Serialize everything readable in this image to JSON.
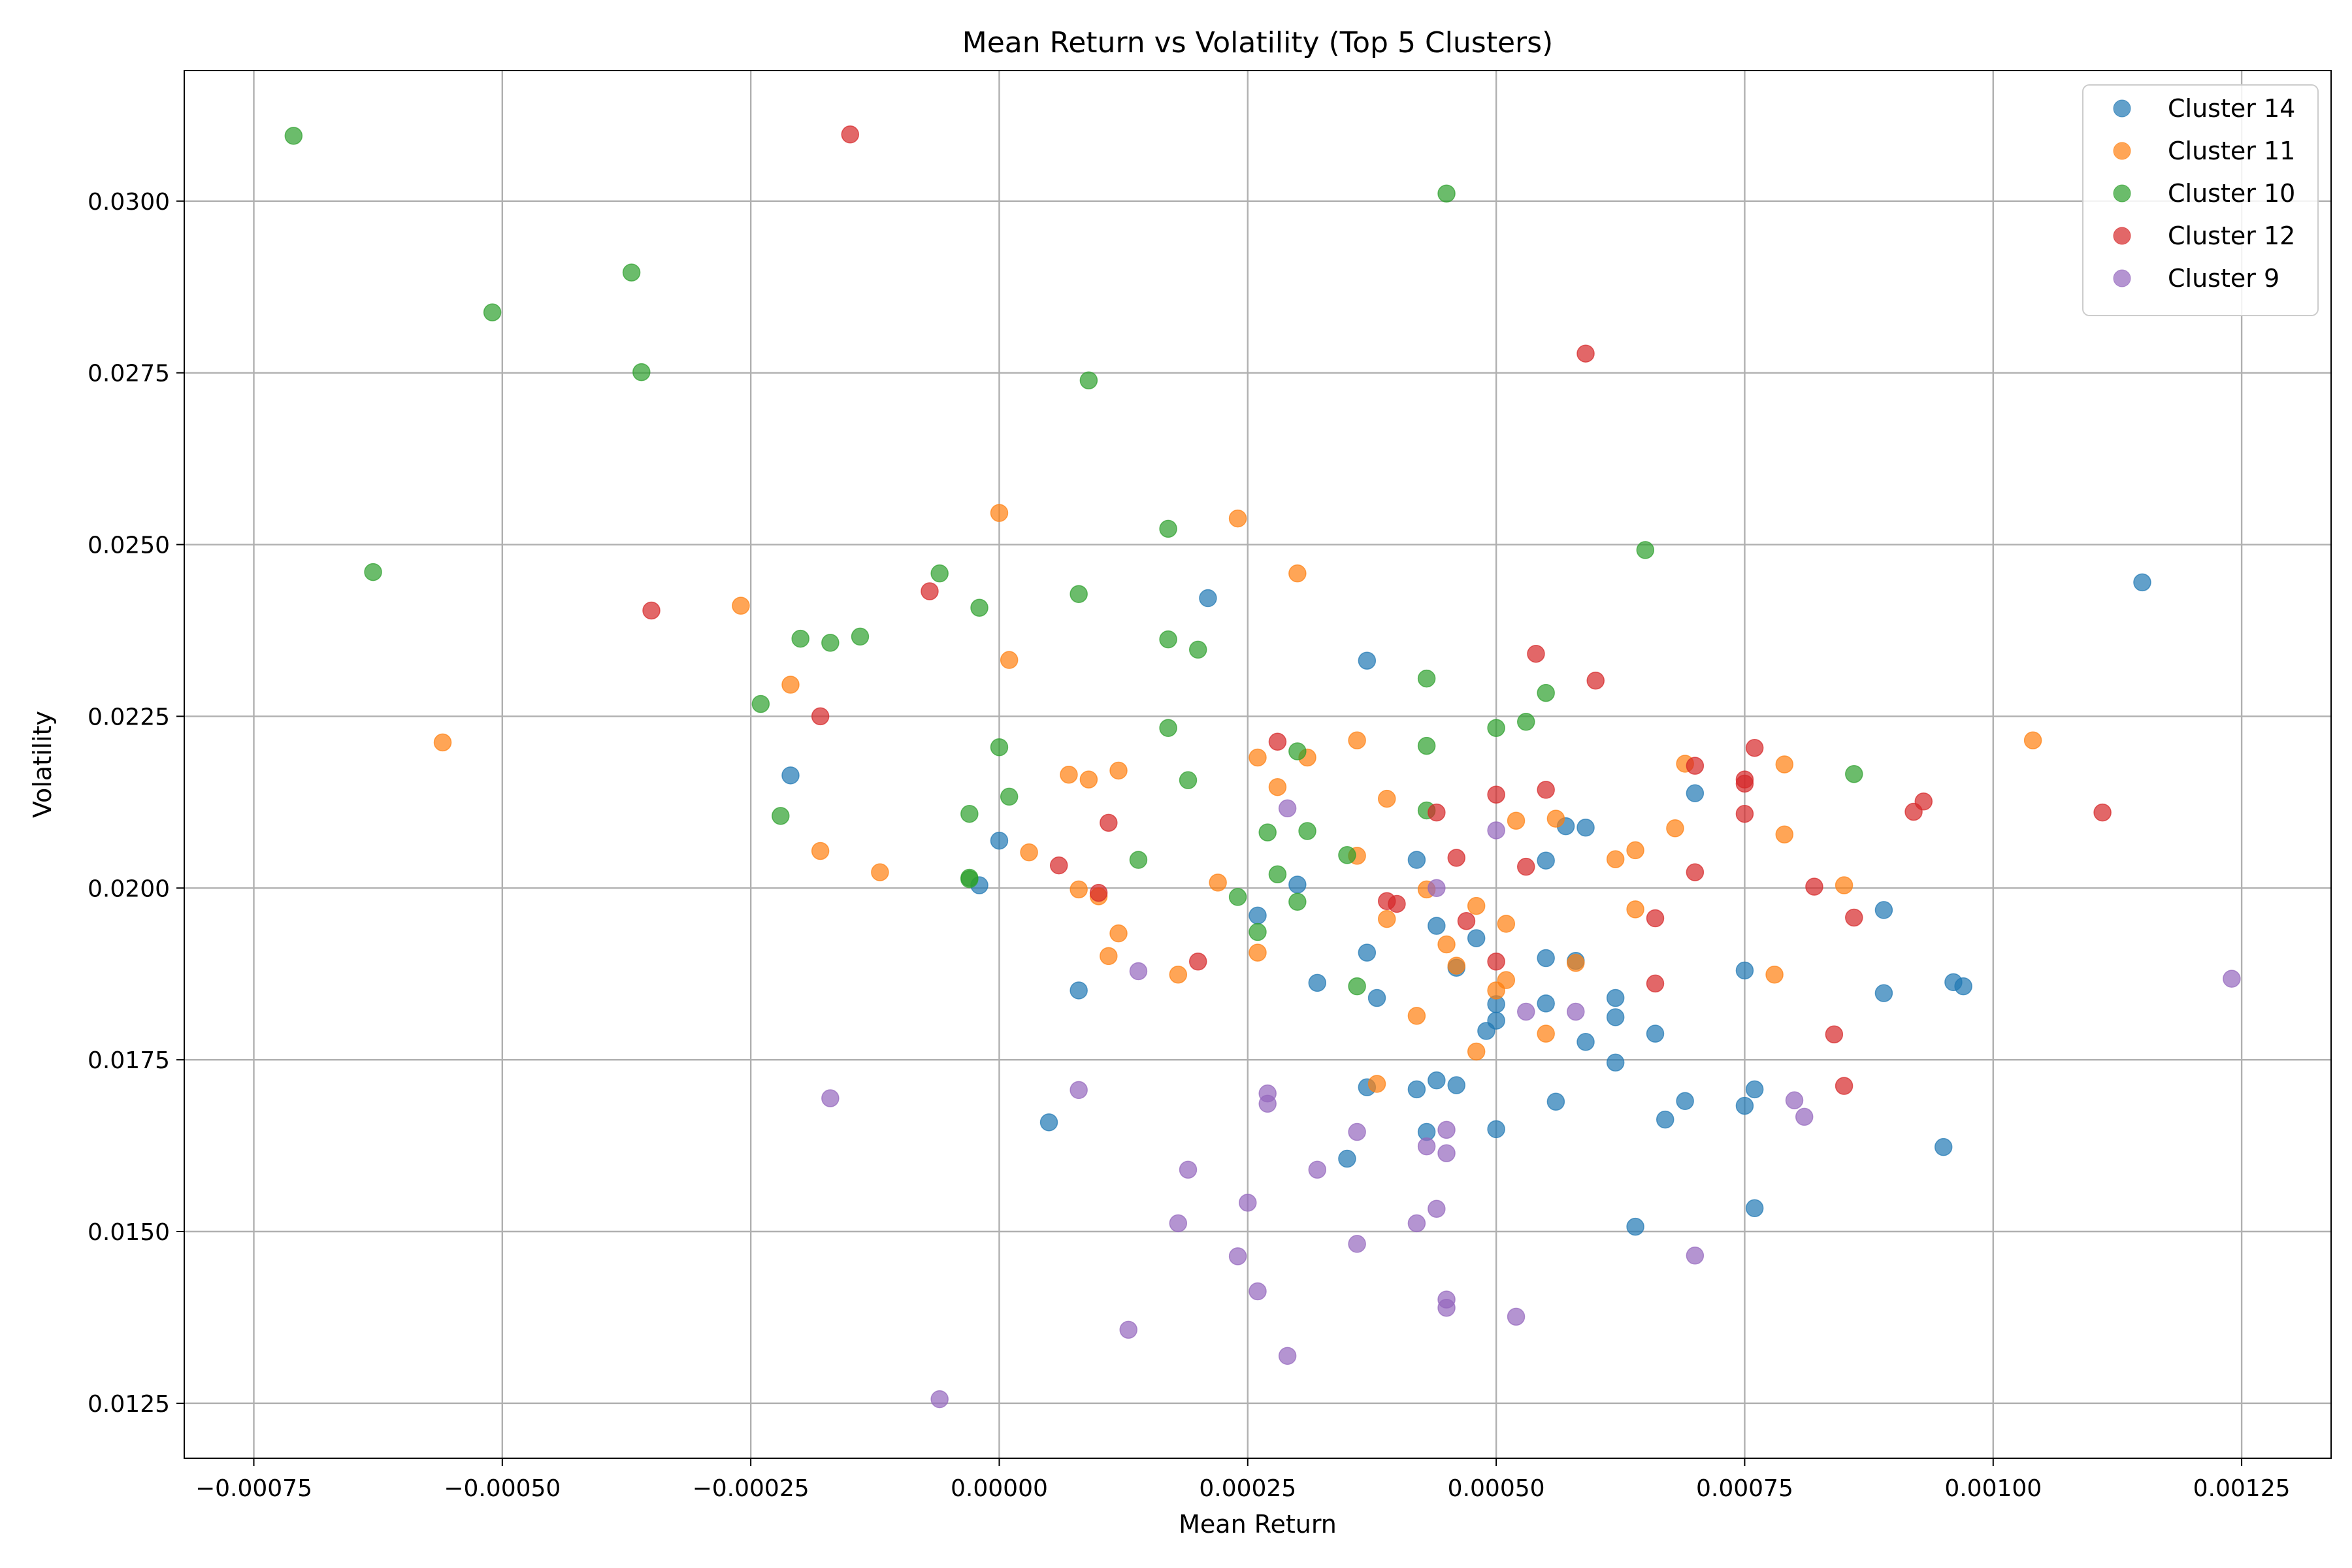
{
  "chart_data": {
    "type": "scatter",
    "title": "Mean Return vs Volatility (Top 5 Clusters)",
    "xlabel": "Mean Return",
    "ylabel": "Volatility",
    "xlim": [
      -0.00082,
      0.00134
    ],
    "ylim": [
      0.0117,
      0.0319
    ],
    "grid": true,
    "legend_position": "top-right",
    "x_ticks": [
      {
        "value": -0.00075,
        "label": "−0.00075"
      },
      {
        "value": -0.0005,
        "label": "−0.00050"
      },
      {
        "value": -0.00025,
        "label": "−0.00025"
      },
      {
        "value": 0.0,
        "label": "0.00000"
      },
      {
        "value": 0.00025,
        "label": "0.00025"
      },
      {
        "value": 0.0005,
        "label": "0.00050"
      },
      {
        "value": 0.00075,
        "label": "0.00075"
      },
      {
        "value": 0.001,
        "label": "0.00100"
      },
      {
        "value": 0.00125,
        "label": "0.00125"
      }
    ],
    "y_ticks": [
      {
        "value": 0.0125,
        "label": "0.0125"
      },
      {
        "value": 0.015,
        "label": "0.0150"
      },
      {
        "value": 0.0175,
        "label": "0.0175"
      },
      {
        "value": 0.02,
        "label": "0.0200"
      },
      {
        "value": 0.0225,
        "label": "0.0225"
      },
      {
        "value": 0.025,
        "label": "0.0250"
      },
      {
        "value": 0.0275,
        "label": "0.0275"
      },
      {
        "value": 0.03,
        "label": "0.0300"
      }
    ],
    "series": [
      {
        "name": "Cluster 14",
        "color": "#1f77b4",
        "points": [
          [
            0.00115,
            0.02445
          ],
          [
            0.00021,
            0.02422
          ],
          [
            0.00037,
            0.02331
          ],
          [
            -0.00021,
            0.02164
          ],
          [
            0.0007,
            0.02138
          ],
          [
            0.00057,
            0.0209
          ],
          [
            0.00059,
            0.02088
          ],
          [
            0.0,
            0.02069
          ],
          [
            0.00042,
            0.02041
          ],
          [
            0.00055,
            0.0204
          ],
          [
            0.0003,
            0.02005
          ],
          [
            -2e-05,
            0.02004
          ],
          [
            0.00089,
            0.01968
          ],
          [
            0.00026,
            0.0196
          ],
          [
            0.00044,
            0.01945
          ],
          [
            0.00048,
            0.01927
          ],
          [
            0.00037,
            0.01906
          ],
          [
            0.00055,
            0.01898
          ],
          [
            0.00058,
            0.01894
          ],
          [
            0.00046,
            0.01884
          ],
          [
            0.00075,
            0.0188
          ],
          [
            0.00032,
            0.01862
          ],
          [
            0.00096,
            0.01863
          ],
          [
            0.00097,
            0.01857
          ],
          [
            8e-05,
            0.01851
          ],
          [
            0.00089,
            0.01847
          ],
          [
            0.00038,
            0.0184
          ],
          [
            0.00062,
            0.0184
          ],
          [
            0.00055,
            0.01832
          ],
          [
            0.0005,
            0.01831
          ],
          [
            0.00062,
            0.01812
          ],
          [
            0.0005,
            0.01807
          ],
          [
            0.00049,
            0.01792
          ],
          [
            0.00066,
            0.01788
          ],
          [
            0.00059,
            0.01776
          ],
          [
            0.00062,
            0.01746
          ],
          [
            0.00044,
            0.0172
          ],
          [
            0.00046,
            0.01713
          ],
          [
            0.00037,
            0.0171
          ],
          [
            0.00042,
            0.01707
          ],
          [
            0.00076,
            0.01707
          ],
          [
            0.00069,
            0.0169
          ],
          [
            0.00056,
            0.01689
          ],
          [
            0.00075,
            0.01683
          ],
          [
            0.00067,
            0.01663
          ],
          [
            5e-05,
            0.01659
          ],
          [
            0.0005,
            0.01649
          ],
          [
            0.00043,
            0.01645
          ],
          [
            0.00095,
            0.01623
          ],
          [
            0.00035,
            0.01606
          ],
          [
            0.00076,
            0.01534
          ],
          [
            0.00064,
            0.01507
          ]
        ]
      },
      {
        "name": "Cluster 11",
        "color": "#ff7f0e",
        "points": [
          [
            0.0,
            0.02546
          ],
          [
            0.00024,
            0.02538
          ],
          [
            0.0003,
            0.02458
          ],
          [
            -0.00026,
            0.02411
          ],
          [
            1e-05,
            0.02332
          ],
          [
            -0.00021,
            0.02296
          ],
          [
            -0.00056,
            0.02212
          ],
          [
            0.00104,
            0.02215
          ],
          [
            0.00036,
            0.02215
          ],
          [
            0.00026,
            0.0219
          ],
          [
            0.00031,
            0.0219
          ],
          [
            0.00069,
            0.02181
          ],
          [
            0.00079,
            0.0218
          ],
          [
            0.00012,
            0.02171
          ],
          [
            7e-05,
            0.02165
          ],
          [
            9e-05,
            0.02158
          ],
          [
            0.00028,
            0.02147
          ],
          [
            0.00039,
            0.0213
          ],
          [
            0.00056,
            0.02101
          ],
          [
            0.00052,
            0.02098
          ],
          [
            0.00068,
            0.02087
          ],
          [
            0.00079,
            0.02078
          ],
          [
            0.00064,
            0.02055
          ],
          [
            -0.00018,
            0.02054
          ],
          [
            3e-05,
            0.02052
          ],
          [
            0.00036,
            0.02047
          ],
          [
            0.00062,
            0.02042
          ],
          [
            -0.00012,
            0.02023
          ],
          [
            0.00022,
            0.02008
          ],
          [
            0.00085,
            0.02004
          ],
          [
            0.00043,
            0.01998
          ],
          [
            8e-05,
            0.01998
          ],
          [
            0.0001,
            0.01988
          ],
          [
            0.00048,
            0.01974
          ],
          [
            0.00064,
            0.01969
          ],
          [
            0.00039,
            0.01955
          ],
          [
            0.00051,
            0.01948
          ],
          [
            0.00012,
            0.01934
          ],
          [
            0.00045,
            0.01918
          ],
          [
            0.00026,
            0.01906
          ],
          [
            0.00011,
            0.01901
          ],
          [
            0.00058,
            0.01891
          ],
          [
            0.00046,
            0.01887
          ],
          [
            0.00018,
            0.01874
          ],
          [
            0.00078,
            0.01874
          ],
          [
            0.00051,
            0.01866
          ],
          [
            0.0005,
            0.01851
          ],
          [
            0.00042,
            0.01814
          ],
          [
            0.00055,
            0.01788
          ],
          [
            0.00048,
            0.01762
          ],
          [
            0.00038,
            0.01715
          ]
        ]
      },
      {
        "name": "Cluster 10",
        "color": "#2ca02c",
        "points": [
          [
            -0.00071,
            0.03095
          ],
          [
            0.00045,
            0.03011
          ],
          [
            -0.00037,
            0.02896
          ],
          [
            -0.00051,
            0.02838
          ],
          [
            -0.00036,
            0.02751
          ],
          [
            9e-05,
            0.02739
          ],
          [
            0.00017,
            0.02523
          ],
          [
            0.00065,
            0.02492
          ],
          [
            -0.00063,
            0.0246
          ],
          [
            -6e-05,
            0.02458
          ],
          [
            8e-05,
            0.02428
          ],
          [
            -2e-05,
            0.02408
          ],
          [
            -0.0002,
            0.02363
          ],
          [
            -0.00014,
            0.02366
          ],
          [
            -0.00017,
            0.02357
          ],
          [
            0.00017,
            0.02362
          ],
          [
            0.0002,
            0.02347
          ],
          [
            0.00043,
            0.02305
          ],
          [
            0.00055,
            0.02284
          ],
          [
            -0.00024,
            0.02268
          ],
          [
            0.00053,
            0.02242
          ],
          [
            0.0005,
            0.02233
          ],
          [
            0.00017,
            0.02233
          ],
          [
            0.00043,
            0.02207
          ],
          [
            0.0,
            0.02205
          ],
          [
            0.0003,
            0.02199
          ],
          [
            0.00086,
            0.02166
          ],
          [
            0.00019,
            0.02157
          ],
          [
            1e-05,
            0.02133
          ],
          [
            0.00043,
            0.02113
          ],
          [
            -0.00022,
            0.02105
          ],
          [
            -3e-05,
            0.02108
          ],
          [
            0.00031,
            0.02083
          ],
          [
            0.00027,
            0.02081
          ],
          [
            0.00035,
            0.02048
          ],
          [
            0.00014,
            0.02041
          ],
          [
            -3e-05,
            0.02015
          ],
          [
            0.00028,
            0.0202
          ],
          [
            -3e-05,
            0.02013
          ],
          [
            0.00024,
            0.01987
          ],
          [
            0.0003,
            0.0198
          ],
          [
            0.00026,
            0.01936
          ],
          [
            0.00036,
            0.01857
          ]
        ]
      },
      {
        "name": "Cluster 12",
        "color": "#d62728",
        "points": [
          [
            -0.00015,
            0.03097
          ],
          [
            0.00059,
            0.02778
          ],
          [
            -7e-05,
            0.02432
          ],
          [
            -0.00035,
            0.02404
          ],
          [
            0.00054,
            0.02341
          ],
          [
            0.0006,
            0.02302
          ],
          [
            -0.00018,
            0.0225
          ],
          [
            0.00028,
            0.02213
          ],
          [
            0.00076,
            0.02204
          ],
          [
            0.0007,
            0.02178
          ],
          [
            0.00075,
            0.02158
          ],
          [
            0.00075,
            0.02152
          ],
          [
            0.00055,
            0.02143
          ],
          [
            0.0005,
            0.02136
          ],
          [
            0.00093,
            0.02126
          ],
          [
            0.00111,
            0.0211
          ],
          [
            0.00092,
            0.02111
          ],
          [
            0.00044,
            0.0211
          ],
          [
            0.00075,
            0.02108
          ],
          [
            0.00011,
            0.02095
          ],
          [
            0.00046,
            0.02044
          ],
          [
            6e-05,
            0.02033
          ],
          [
            0.00053,
            0.02031
          ],
          [
            0.0007,
            0.02023
          ],
          [
            0.00082,
            0.02002
          ],
          [
            0.0001,
            0.01993
          ],
          [
            0.00039,
            0.01981
          ],
          [
            0.0004,
            0.01977
          ],
          [
            0.00066,
            0.01956
          ],
          [
            0.00086,
            0.01957
          ],
          [
            0.00047,
            0.01952
          ],
          [
            0.0002,
            0.01893
          ],
          [
            0.0005,
            0.01893
          ],
          [
            0.00066,
            0.01861
          ],
          [
            0.00084,
            0.01787
          ],
          [
            0.00085,
            0.01712
          ]
        ]
      },
      {
        "name": "Cluster 9",
        "color": "#9467bd",
        "points": [
          [
            0.00029,
            0.02116
          ],
          [
            0.0005,
            0.02084
          ],
          [
            0.00044,
            0.02
          ],
          [
            0.00014,
            0.01879
          ],
          [
            0.00124,
            0.01868
          ],
          [
            0.00053,
            0.0182
          ],
          [
            0.00058,
            0.0182
          ],
          [
            8e-05,
            0.01706
          ],
          [
            0.00027,
            0.01701
          ],
          [
            -0.00017,
            0.01694
          ],
          [
            0.00027,
            0.01686
          ],
          [
            0.0008,
            0.01691
          ],
          [
            0.00081,
            0.01667
          ],
          [
            0.00045,
            0.01648
          ],
          [
            0.00036,
            0.01645
          ],
          [
            0.00043,
            0.01624
          ],
          [
            0.00045,
            0.01614
          ],
          [
            0.00019,
            0.0159
          ],
          [
            0.00032,
            0.0159
          ],
          [
            0.00025,
            0.01542
          ],
          [
            0.00044,
            0.01533
          ],
          [
            0.00018,
            0.01512
          ],
          [
            0.00042,
            0.01512
          ],
          [
            0.00036,
            0.01482
          ],
          [
            0.00024,
            0.01464
          ],
          [
            0.0007,
            0.01465
          ],
          [
            0.00026,
            0.01413
          ],
          [
            0.00045,
            0.01401
          ],
          [
            0.00045,
            0.01389
          ],
          [
            0.00052,
            0.01376
          ],
          [
            0.00013,
            0.01357
          ],
          [
            0.00029,
            0.01319
          ],
          [
            -6e-05,
            0.01256
          ]
        ]
      }
    ]
  }
}
